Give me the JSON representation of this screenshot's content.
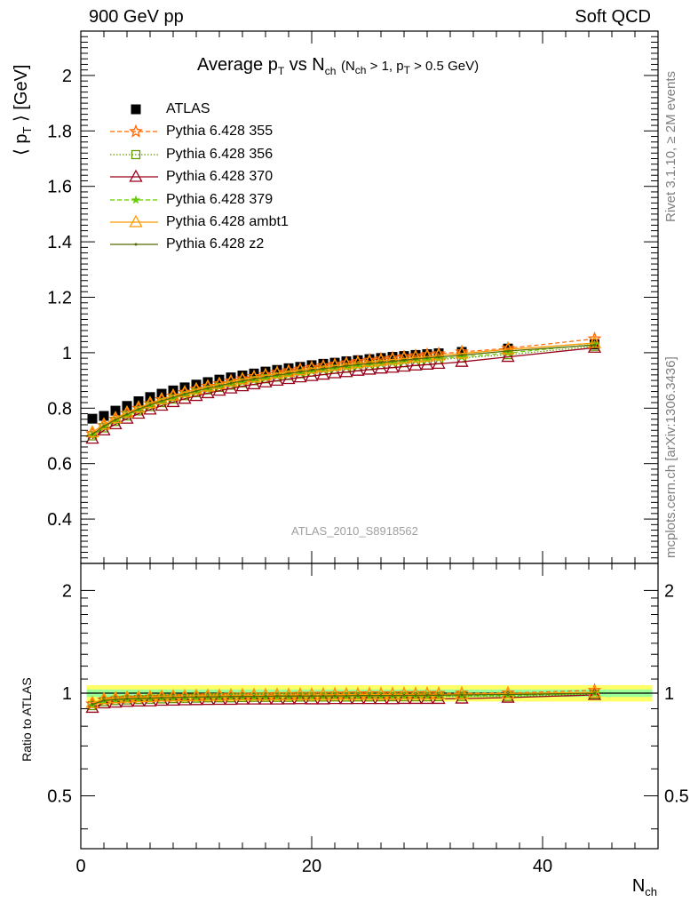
{
  "header": {
    "left": "900 GeV pp",
    "right": "Soft QCD"
  },
  "side_text": {
    "rivet": "Rivet 3.1.10, ≥ 2M events",
    "mcplots": "mcplots.cern.ch [arXiv:1306.3436]"
  },
  "watermark": "ATLAS_2010_S8918562",
  "ratio_ylabel": "Ratio to ATLAS",
  "colors": {
    "atlas": "#000000",
    "p355": "#ff6600",
    "p356": "#669900",
    "p370": "#99001a",
    "p379": "#66cc00",
    "ambt1": "#ff9900",
    "z2": "#556b00",
    "band_inner": "#99ff99",
    "band_outer": "#ffff66"
  },
  "chart_data": [
    {
      "type": "line",
      "title": "Average p_T vs N_ch (N_ch > 1, p_T > 0.5 GeV)",
      "ylabel": "⟨ p_T ⟩ [GeV]",
      "xlabel": "N_ch",
      "xlim": [
        0,
        50
      ],
      "ylim": [
        0.24,
        2.16
      ],
      "yticks": [
        0.4,
        0.6,
        0.8,
        1,
        1.2,
        1.4,
        1.6,
        1.8,
        2
      ],
      "xticks": [
        0,
        20,
        40
      ],
      "legend_position": "top-left",
      "x": [
        1,
        2,
        3,
        4,
        5,
        6,
        7,
        8,
        9,
        10,
        11,
        12,
        13,
        14,
        15,
        16,
        17,
        18,
        19,
        20,
        21,
        22,
        23,
        24,
        25,
        26,
        27,
        28,
        29,
        30,
        31,
        33,
        37,
        44.5
      ],
      "series": [
        {
          "name": "ATLAS",
          "marker": "square",
          "values": [
            0.762,
            0.772,
            0.791,
            0.808,
            0.825,
            0.84,
            0.852,
            0.864,
            0.875,
            0.885,
            0.894,
            0.903,
            0.911,
            0.918,
            0.925,
            0.932,
            0.938,
            0.944,
            0.949,
            0.955,
            0.96,
            0.964,
            0.969,
            0.973,
            0.977,
            0.981,
            0.985,
            0.988,
            0.992,
            0.995,
            0.998,
            1.003,
            1.015,
            1.03
          ]
        },
        {
          "name": "Pythia 6.428 355",
          "marker": "star",
          "values": [
            0.708,
            0.737,
            0.76,
            0.781,
            0.799,
            0.816,
            0.831,
            0.844,
            0.857,
            0.868,
            0.879,
            0.888,
            0.898,
            0.906,
            0.914,
            0.921,
            0.929,
            0.935,
            0.941,
            0.947,
            0.953,
            0.958,
            0.963,
            0.968,
            0.973,
            0.977,
            0.981,
            0.985,
            0.989,
            0.993,
            0.996,
            1.003,
            1.016,
            1.05
          ]
        },
        {
          "name": "Pythia 6.428 356",
          "marker": "open-square",
          "values": [
            0.7,
            0.729,
            0.752,
            0.772,
            0.79,
            0.806,
            0.82,
            0.833,
            0.845,
            0.856,
            0.866,
            0.875,
            0.883,
            0.891,
            0.899,
            0.906,
            0.912,
            0.918,
            0.924,
            0.93,
            0.935,
            0.94,
            0.944,
            0.949,
            0.953,
            0.957,
            0.961,
            0.964,
            0.968,
            0.971,
            0.975,
            0.981,
            0.993,
            1.023
          ]
        },
        {
          "name": "Pythia 6.428 370",
          "marker": "open-triangle",
          "values": [
            0.69,
            0.72,
            0.742,
            0.762,
            0.78,
            0.795,
            0.809,
            0.822,
            0.834,
            0.844,
            0.854,
            0.863,
            0.871,
            0.879,
            0.886,
            0.893,
            0.899,
            0.905,
            0.911,
            0.916,
            0.921,
            0.926,
            0.93,
            0.935,
            0.939,
            0.943,
            0.946,
            0.95,
            0.954,
            0.957,
            0.96,
            0.967,
            0.985,
            1.018
          ]
        },
        {
          "name": "Pythia 6.428 379",
          "marker": "small-star",
          "values": [
            0.702,
            0.731,
            0.754,
            0.774,
            0.792,
            0.808,
            0.822,
            0.835,
            0.847,
            0.858,
            0.868,
            0.877,
            0.886,
            0.894,
            0.901,
            0.908,
            0.915,
            0.921,
            0.927,
            0.933,
            0.938,
            0.943,
            0.947,
            0.952,
            0.956,
            0.96,
            0.964,
            0.968,
            0.972,
            0.975,
            0.979,
            0.985,
            0.999,
            1.03
          ]
        },
        {
          "name": "Pythia 6.428 ambt1",
          "marker": "open-triangle",
          "values": [
            0.713,
            0.741,
            0.764,
            0.784,
            0.802,
            0.818,
            0.832,
            0.845,
            0.857,
            0.868,
            0.878,
            0.887,
            0.896,
            0.904,
            0.911,
            0.918,
            0.925,
            0.931,
            0.937,
            0.943,
            0.948,
            0.953,
            0.958,
            0.962,
            0.967,
            0.971,
            0.975,
            0.979,
            0.983,
            0.986,
            0.99,
            0.997,
            1.012,
            1.035
          ]
        },
        {
          "name": "Pythia 6.428 z2",
          "marker": "dot",
          "values": [
            0.706,
            0.735,
            0.758,
            0.778,
            0.796,
            0.812,
            0.826,
            0.839,
            0.851,
            0.862,
            0.872,
            0.881,
            0.89,
            0.898,
            0.905,
            0.912,
            0.919,
            0.925,
            0.931,
            0.937,
            0.942,
            0.947,
            0.952,
            0.957,
            0.961,
            0.965,
            0.969,
            0.973,
            0.977,
            0.981,
            0.984,
            0.991,
            1.006,
            1.028
          ]
        }
      ]
    },
    {
      "type": "line",
      "ylabel": "Ratio to ATLAS",
      "xlabel": "N_ch",
      "log_y": true,
      "xlim": [
        0,
        50
      ],
      "ylim": [
        0.35,
        2.4
      ],
      "yticks": [
        0.5,
        1,
        2
      ],
      "xticks": [
        0,
        20,
        40
      ],
      "x": [
        1,
        2,
        3,
        4,
        5,
        6,
        7,
        8,
        9,
        10,
        11,
        12,
        13,
        14,
        15,
        16,
        17,
        18,
        19,
        20,
        21,
        22,
        23,
        24,
        25,
        26,
        27,
        28,
        29,
        30,
        31,
        33,
        37,
        44.5
      ],
      "series": [
        {
          "name": "Pythia 6.428 355",
          "values": [
            0.929,
            0.955,
            0.961,
            0.967,
            0.968,
            0.971,
            0.975,
            0.977,
            0.979,
            0.981,
            0.983,
            0.983,
            0.986,
            0.987,
            0.988,
            0.988,
            0.99,
            0.99,
            0.992,
            0.992,
            0.993,
            0.994,
            0.994,
            0.995,
            0.996,
            0.996,
            0.996,
            0.997,
            0.997,
            0.998,
            0.998,
            1.0,
            1.001,
            1.019
          ]
        },
        {
          "name": "Pythia 6.428 356",
          "values": [
            0.919,
            0.944,
            0.951,
            0.955,
            0.958,
            0.96,
            0.962,
            0.964,
            0.966,
            0.967,
            0.969,
            0.969,
            0.969,
            0.971,
            0.972,
            0.972,
            0.972,
            0.972,
            0.974,
            0.974,
            0.974,
            0.975,
            0.974,
            0.975,
            0.975,
            0.976,
            0.976,
            0.976,
            0.976,
            0.976,
            0.977,
            0.978,
            0.978,
            0.993
          ]
        },
        {
          "name": "Pythia 6.428 370",
          "values": [
            0.906,
            0.933,
            0.938,
            0.943,
            0.945,
            0.946,
            0.95,
            0.951,
            0.953,
            0.954,
            0.955,
            0.956,
            0.956,
            0.958,
            0.958,
            0.958,
            0.958,
            0.959,
            0.96,
            0.959,
            0.959,
            0.961,
            0.96,
            0.961,
            0.961,
            0.961,
            0.96,
            0.962,
            0.962,
            0.962,
            0.962,
            0.964,
            0.97,
            0.988
          ]
        },
        {
          "name": "Pythia 6.428 379",
          "values": [
            0.921,
            0.947,
            0.953,
            0.958,
            0.96,
            0.962,
            0.965,
            0.966,
            0.968,
            0.969,
            0.971,
            0.971,
            0.973,
            0.974,
            0.974,
            0.974,
            0.975,
            0.976,
            0.977,
            0.977,
            0.977,
            0.978,
            0.977,
            0.978,
            0.978,
            0.979,
            0.979,
            0.98,
            0.98,
            0.98,
            0.981,
            0.982,
            0.984,
            1.0
          ]
        },
        {
          "name": "Pythia 6.428 ambt1",
          "values": [
            0.936,
            0.96,
            0.966,
            0.97,
            0.972,
            0.974,
            0.977,
            0.978,
            0.979,
            0.981,
            0.982,
            0.982,
            0.984,
            0.985,
            0.985,
            0.985,
            0.986,
            0.986,
            0.987,
            0.987,
            0.988,
            0.989,
            0.989,
            0.989,
            0.99,
            0.99,
            0.99,
            0.991,
            0.991,
            0.991,
            0.992,
            0.994,
            0.997,
            1.005
          ]
        },
        {
          "name": "Pythia 6.428 z2",
          "values": [
            0.927,
            0.952,
            0.958,
            0.963,
            0.965,
            0.967,
            0.969,
            0.971,
            0.973,
            0.974,
            0.975,
            0.976,
            0.977,
            0.978,
            0.978,
            0.979,
            0.98,
            0.98,
            0.981,
            0.981,
            0.981,
            0.982,
            0.982,
            0.984,
            0.984,
            0.984,
            0.984,
            0.985,
            0.985,
            0.986,
            0.986,
            0.988,
            0.991,
            0.998
          ]
        }
      ],
      "band_inner": [
        0.975,
        1.025
      ],
      "band_outer": [
        0.945,
        1.055
      ]
    }
  ]
}
